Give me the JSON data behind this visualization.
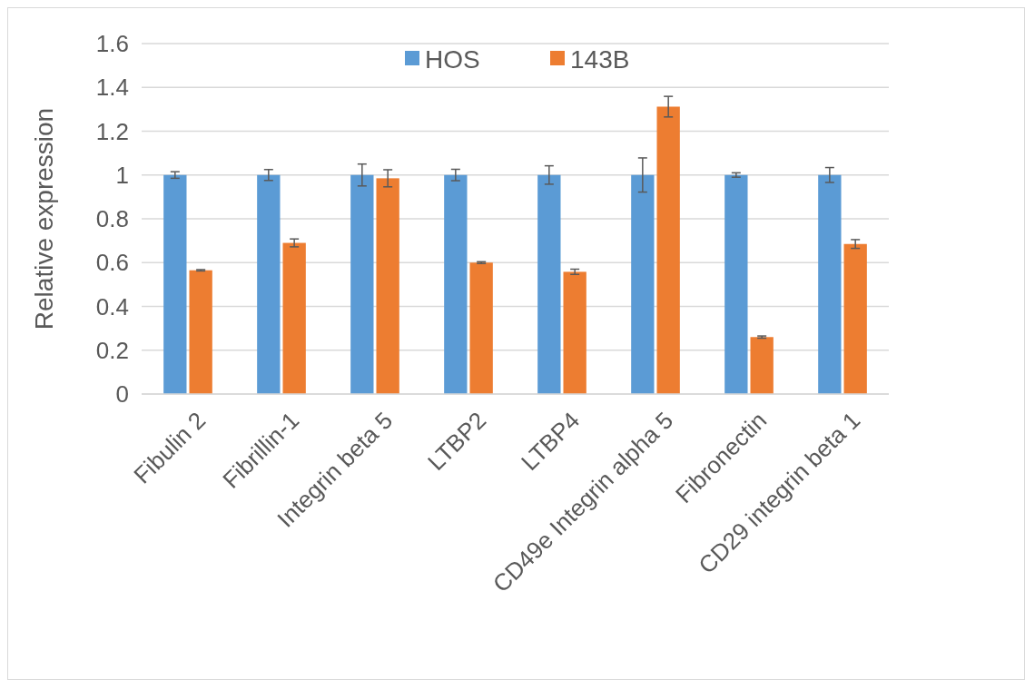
{
  "chart_data": {
    "type": "bar",
    "ylabel": "Relative expression",
    "categories": [
      "Fibulin 2",
      "Fibrillin-1",
      "Integrin beta 5",
      "LTBP2",
      "LTBP4",
      "CD49e Integrin alpha 5",
      "Fibronectin",
      "CD29 integrin beta 1"
    ],
    "series": [
      {
        "name": "HOS",
        "color": "#5b9bd5",
        "values": [
          1,
          1,
          1,
          1,
          1,
          1,
          1,
          1
        ],
        "errors": [
          0.015,
          0.025,
          0.05,
          0.026,
          0.042,
          0.078,
          0.01,
          0.034
        ]
      },
      {
        "name": "143B",
        "color": "#ed7d31",
        "values": [
          0.565,
          0.69,
          0.985,
          0.6,
          0.558,
          1.312,
          0.26,
          0.685
        ],
        "errors": [
          0.003,
          0.018,
          0.039,
          0.004,
          0.012,
          0.047,
          0.005,
          0.02
        ]
      }
    ],
    "ylim": [
      0,
      1.6
    ],
    "yticks": [
      0,
      {
        "value": 0.2,
        "label": "0.2"
      },
      {
        "value": 0.4,
        "label": "0.4"
      },
      {
        "value": 0.6,
        "label": "0.6"
      },
      {
        "value": 0.8,
        "label": "0.8"
      },
      1,
      {
        "value": 1.2,
        "label": "1.2"
      },
      {
        "value": 1.4,
        "label": "1.4"
      },
      {
        "value": 1.6,
        "label": "1.6"
      }
    ],
    "grid": "y",
    "legend": "top"
  }
}
